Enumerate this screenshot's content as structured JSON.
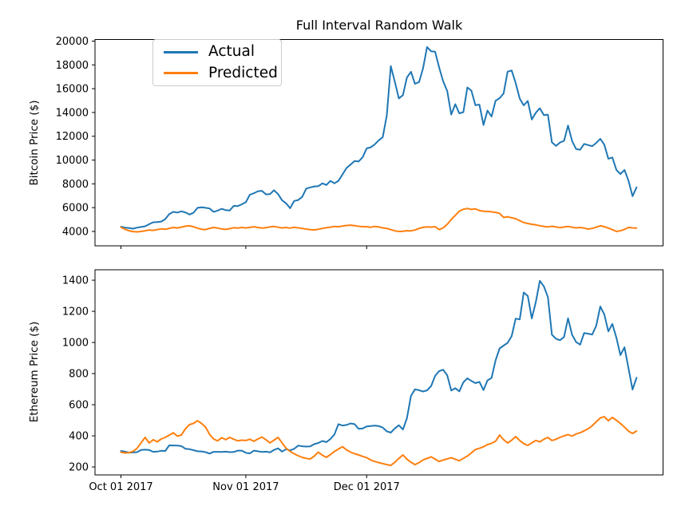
{
  "figure": {
    "title": "Full Interval Random Walk",
    "background": "#ffffff"
  },
  "legend": {
    "entries": [
      {
        "label": "Actual",
        "color": "#1f77b4"
      },
      {
        "label": "Predicted",
        "color": "#ff7f0e"
      }
    ]
  },
  "x_axis": {
    "start": "Oct 01 2017",
    "point_interval": "1 day",
    "points": 129,
    "tick_positions": [
      0,
      31,
      61
    ],
    "tick_labels": [
      "Oct 01 2017",
      "Nov 01 2017",
      "Dec 01 2017"
    ]
  },
  "chart_data": [
    {
      "type": "line",
      "title": "Full Interval Random Walk",
      "ylabel": "Bitcoin Price ($)",
      "xlabel": "",
      "grid": false,
      "legend_position": "upper left",
      "ylim": [
        2789,
        20134
      ],
      "yticks": [
        4000,
        6000,
        8000,
        10000,
        12000,
        14000,
        16000,
        18000,
        20000
      ],
      "x_unit": "daily, index 0 = Oct 01 2017",
      "series": [
        {
          "name": "Actual",
          "color": "#1f77b4",
          "values": [
            4400,
            4320,
            4290,
            4230,
            4320,
            4370,
            4430,
            4610,
            4770,
            4780,
            4830,
            5040,
            5450,
            5650,
            5590,
            5690,
            5600,
            5420,
            5570,
            5980,
            6030,
            5980,
            5930,
            5650,
            5750,
            5900,
            5790,
            5760,
            6150,
            6130,
            6280,
            6450,
            7080,
            7210,
            7380,
            7410,
            7120,
            7140,
            7460,
            7140,
            6620,
            6360,
            5950,
            6560,
            6640,
            6900,
            7600,
            7700,
            7780,
            7800,
            8040,
            7900,
            8250,
            8040,
            8250,
            8790,
            9330,
            9620,
            9920,
            9880,
            10230,
            10980,
            11070,
            11320,
            11660,
            11920,
            13750,
            17900,
            16570,
            15180,
            15460,
            16940,
            17420,
            16410,
            16560,
            17710,
            19500,
            19140,
            19110,
            17780,
            16620,
            15800,
            13830,
            14700,
            13930,
            14030,
            16100,
            15840,
            14610,
            14660,
            12950,
            14160,
            13660,
            14980,
            15200,
            15600,
            17430,
            17530,
            16480,
            15170,
            14600,
            14970,
            13410,
            13980,
            14360,
            13770,
            13820,
            11490,
            11190,
            11470,
            11610,
            12900,
            11600,
            10930,
            10870,
            11360,
            11260,
            11170,
            11440,
            11790,
            11300,
            10110,
            10220,
            9170,
            8830,
            9170,
            8280,
            6960,
            7700
          ]
        },
        {
          "name": "Predicted",
          "color": "#ff7f0e",
          "values": [
            4350,
            4180,
            4060,
            3990,
            3960,
            4000,
            4060,
            4120,
            4090,
            4150,
            4220,
            4180,
            4260,
            4330,
            4290,
            4360,
            4440,
            4470,
            4390,
            4280,
            4180,
            4150,
            4260,
            4330,
            4280,
            4210,
            4170,
            4230,
            4310,
            4280,
            4330,
            4290,
            4340,
            4390,
            4330,
            4280,
            4320,
            4380,
            4420,
            4350,
            4290,
            4330,
            4280,
            4350,
            4300,
            4250,
            4200,
            4150,
            4130,
            4180,
            4250,
            4310,
            4360,
            4420,
            4390,
            4450,
            4500,
            4530,
            4480,
            4430,
            4400,
            4400,
            4350,
            4420,
            4380,
            4300,
            4250,
            4150,
            4050,
            4000,
            4020,
            4060,
            4050,
            4120,
            4250,
            4340,
            4380,
            4360,
            4400,
            4150,
            4300,
            4600,
            5000,
            5350,
            5700,
            5870,
            5930,
            5850,
            5900,
            5750,
            5700,
            5680,
            5650,
            5600,
            5520,
            5180,
            5230,
            5150,
            5070,
            4900,
            4750,
            4670,
            4600,
            4550,
            4480,
            4420,
            4380,
            4430,
            4370,
            4320,
            4370,
            4420,
            4350,
            4300,
            4330,
            4280,
            4200,
            4250,
            4350,
            4470,
            4400,
            4280,
            4150,
            4000,
            4050,
            4180,
            4330,
            4300,
            4280
          ]
        }
      ]
    },
    {
      "type": "line",
      "title": "",
      "ylabel": "Ethereum Price ($)",
      "xlabel": "",
      "grid": false,
      "ylim": [
        149,
        1467
      ],
      "yticks": [
        200,
        400,
        600,
        800,
        1000,
        1200,
        1400
      ],
      "x_unit": "daily, index 0 = Oct 01 2017",
      "series": [
        {
          "name": "Actual",
          "color": "#1f77b4",
          "values": [
            303,
            298,
            292,
            293,
            295,
            309,
            311,
            309,
            297,
            299,
            304,
            303,
            339,
            338,
            337,
            334,
            317,
            314,
            308,
            301,
            300,
            295,
            286,
            297,
            297,
            296,
            298,
            295,
            296,
            305,
            305,
            291,
            287,
            305,
            301,
            296,
            298,
            294,
            309,
            320,
            299,
            314,
            307,
            316,
            337,
            333,
            331,
            332,
            347,
            354,
            367,
            360,
            380,
            409,
            475,
            466,
            470,
            480,
            475,
            445,
            447,
            461,
            463,
            466,
            463,
            453,
            429,
            421,
            448,
            468,
            441,
            513,
            657,
            699,
            693,
            685,
            692,
            720,
            785,
            816,
            825,
            789,
            691,
            706,
            686,
            744,
            770,
            753,
            739,
            747,
            694,
            756,
            772,
            884,
            962,
            980,
            997,
            1041,
            1153,
            1148,
            1321,
            1299,
            1154,
            1261,
            1396,
            1360,
            1291,
            1050,
            1024,
            1014,
            1035,
            1155,
            1049,
            1003,
            986,
            1061,
            1056,
            1051,
            1107,
            1231,
            1181,
            1071,
            1119,
            1030,
            919,
            969,
            835,
            697,
            773
          ]
        },
        {
          "name": "Predicted",
          "color": "#ff7f0e",
          "values": [
            295,
            290,
            292,
            300,
            320,
            355,
            390,
            354,
            375,
            362,
            380,
            390,
            405,
            420,
            398,
            405,
            445,
            472,
            480,
            497,
            480,
            456,
            410,
            380,
            368,
            388,
            375,
            390,
            378,
            368,
            372,
            370,
            378,
            365,
            380,
            392,
            375,
            355,
            372,
            390,
            355,
            320,
            300,
            285,
            272,
            262,
            255,
            251,
            270,
            295,
            275,
            262,
            280,
            300,
            315,
            330,
            310,
            295,
            285,
            277,
            268,
            260,
            245,
            235,
            228,
            222,
            215,
            210,
            230,
            255,
            277,
            250,
            230,
            215,
            228,
            245,
            255,
            265,
            250,
            235,
            245,
            252,
            260,
            250,
            240,
            255,
            270,
            290,
            312,
            320,
            330,
            344,
            352,
            365,
            405,
            375,
            354,
            372,
            395,
            370,
            350,
            338,
            355,
            370,
            362,
            378,
            390,
            370,
            378,
            390,
            400,
            408,
            398,
            412,
            420,
            432,
            446,
            465,
            490,
            515,
            523,
            497,
            518,
            500,
            480,
            456,
            430,
            415,
            431
          ]
        }
      ]
    }
  ]
}
